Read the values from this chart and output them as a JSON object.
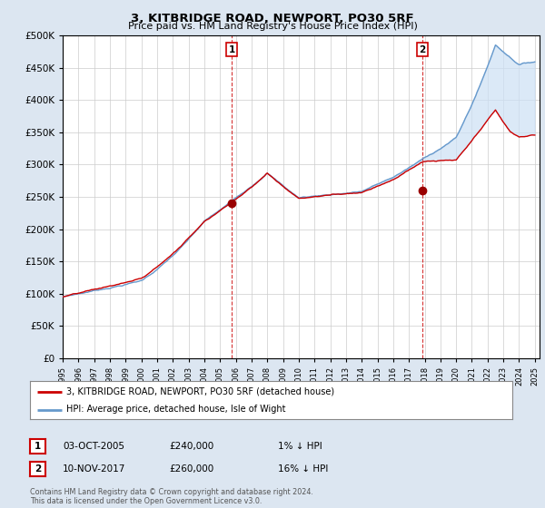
{
  "title": "3, KITBRIDGE ROAD, NEWPORT, PO30 5RF",
  "subtitle": "Price paid vs. HM Land Registry's House Price Index (HPI)",
  "background_color": "#dce6f1",
  "plot_bg_color": "#ffffff",
  "grid_color": "#cccccc",
  "hpi_color": "#6699cc",
  "hpi_fill_color": "#cce0f5",
  "price_color": "#cc0000",
  "marker_color": "#990000",
  "sale1_year": 2005.75,
  "sale1_price": 240000,
  "sale2_year": 2017.86,
  "sale2_price": 260000,
  "legend_label_price": "3, KITBRIDGE ROAD, NEWPORT, PO30 5RF (detached house)",
  "legend_label_hpi": "HPI: Average price, detached house, Isle of Wight",
  "annotation1_label": "1",
  "annotation2_label": "2",
  "table_row1": [
    "1",
    "03-OCT-2005",
    "£240,000",
    "1% ↓ HPI"
  ],
  "table_row2": [
    "2",
    "10-NOV-2017",
    "£260,000",
    "16% ↓ HPI"
  ],
  "footnote": "Contains HM Land Registry data © Crown copyright and database right 2024.\nThis data is licensed under the Open Government Licence v3.0.",
  "ylim": [
    0,
    500000
  ],
  "xlim_start": 1995.0,
  "xlim_end": 2025.3
}
